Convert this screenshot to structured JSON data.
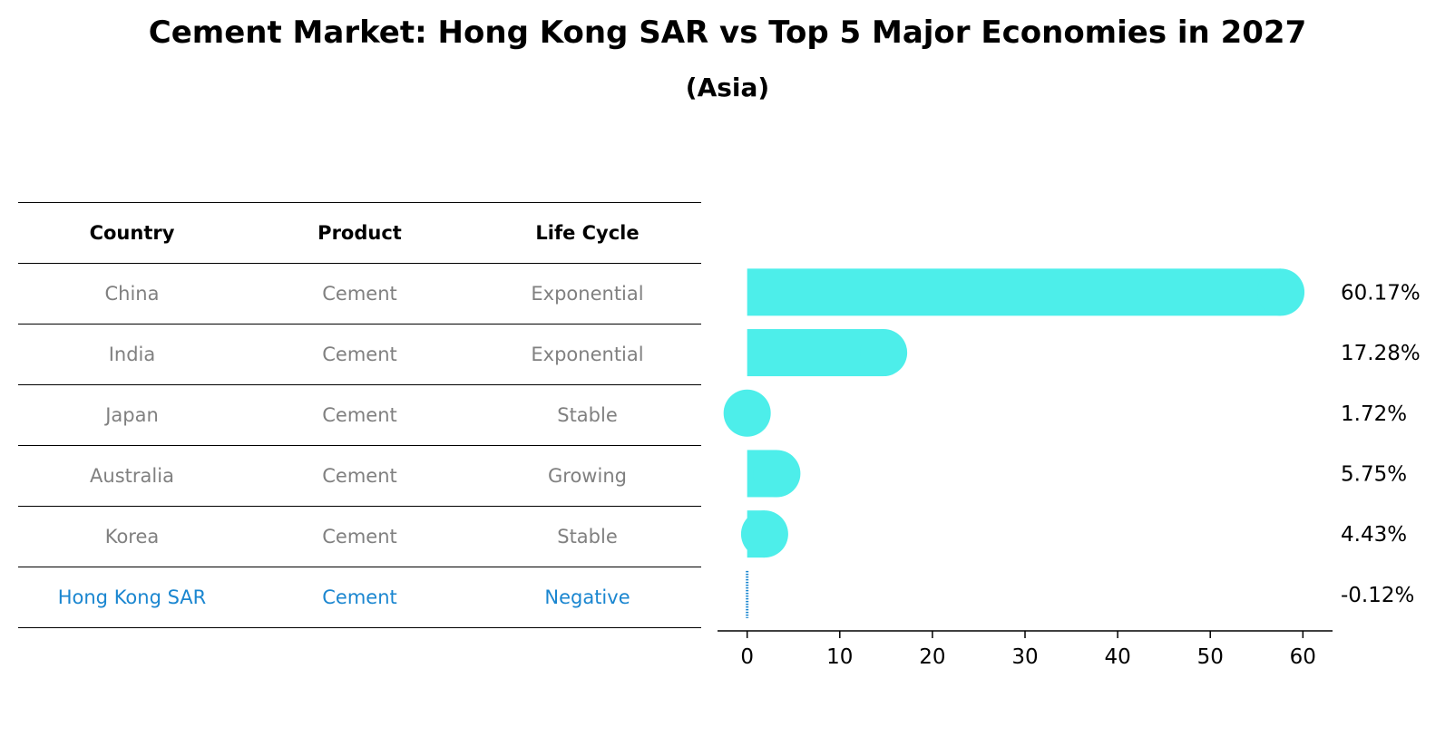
{
  "title": "Cement Market: Hong Kong SAR vs Top 5 Major Economies in 2027",
  "subtitle": "(Asia)",
  "table": {
    "headers": [
      "Country",
      "Product",
      "Life Cycle"
    ],
    "rows": [
      {
        "country": "China",
        "product": "Cement",
        "life_cycle": "Exponential"
      },
      {
        "country": "India",
        "product": "Cement",
        "life_cycle": "Exponential"
      },
      {
        "country": "Japan",
        "product": "Cement",
        "life_cycle": "Stable"
      },
      {
        "country": "Australia",
        "product": "Cement",
        "life_cycle": "Growing"
      },
      {
        "country": "Korea",
        "product": "Cement",
        "life_cycle": "Stable"
      },
      {
        "country": "Hong Kong SAR",
        "product": "Cement",
        "life_cycle": "Negative"
      }
    ]
  },
  "colors": {
    "bar": "#4deeea",
    "highlight": "#1a86d0",
    "muted_text": "#808080"
  },
  "chart_data": {
    "type": "bar",
    "orientation": "horizontal",
    "categories": [
      "China",
      "India",
      "Japan",
      "Australia",
      "Korea",
      "Hong Kong SAR"
    ],
    "values": [
      60.17,
      17.28,
      1.72,
      5.75,
      4.43,
      -0.12
    ],
    "value_labels": [
      "60.17%",
      "17.28%",
      "1.72%",
      "5.75%",
      "4.43%",
      "-0.12%"
    ],
    "xlim": [
      -3.2,
      63.2
    ],
    "xticks": [
      0,
      10,
      20,
      30,
      40,
      50,
      60
    ],
    "xtick_labels": [
      "0",
      "10",
      "20",
      "30",
      "40",
      "50",
      "60"
    ],
    "xlabel": "",
    "ylabel": "",
    "grid": false,
    "highlight_category": "Hong Kong SAR"
  }
}
